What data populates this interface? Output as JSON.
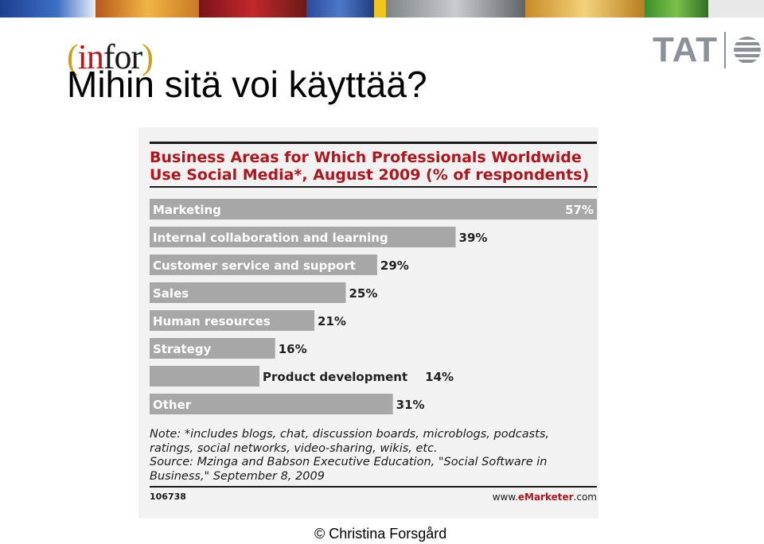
{
  "slide": {
    "logo_left": {
      "open_paren": "(",
      "in": "in",
      "for": "for",
      "close_paren": ")"
    },
    "logo_right": {
      "text": "TAT",
      "icon": "globe-stripes-icon"
    },
    "title": "Mihin sitä voi käyttää?",
    "footer": "© Christina Forsgård"
  },
  "colors": {
    "bar": "#a7a7a7",
    "chart_title": "#b0161b",
    "rule": "#1a1a1a",
    "brand_accent": "#b0161b"
  },
  "chart_data": {
    "type": "bar",
    "orientation": "horizontal",
    "title_lines": [
      "Business  Areas for Which Professionals Worldwide",
      "Use Social Media*, August 2009 (% of respondents)"
    ],
    "categories": [
      "Marketing",
      "Internal collaboration and learning",
      "Customer service and support",
      "Sales",
      "Human resources",
      "Strategy",
      "Product development",
      "Other"
    ],
    "values": [
      57,
      39,
      29,
      25,
      21,
      16,
      14,
      31
    ],
    "value_labels": [
      "57%",
      "39%",
      "29%",
      "25%",
      "21%",
      "16%",
      "14%",
      "31%"
    ],
    "xlim": [
      0,
      57
    ],
    "grid": false,
    "note_lines": [
      "Note: *includes blogs, chat, discussion boards, microblogs, podcasts,",
      "ratings, social networks, video-sharing, wikis, etc.",
      "Source: Mzinga and Babson Executive Education, \"Social Software in",
      "Business,\" September 8, 2009"
    ],
    "chart_id": "106738",
    "brand": {
      "prefix": "www.",
      "strong": "eMarketer",
      "suffix": ".com"
    }
  }
}
